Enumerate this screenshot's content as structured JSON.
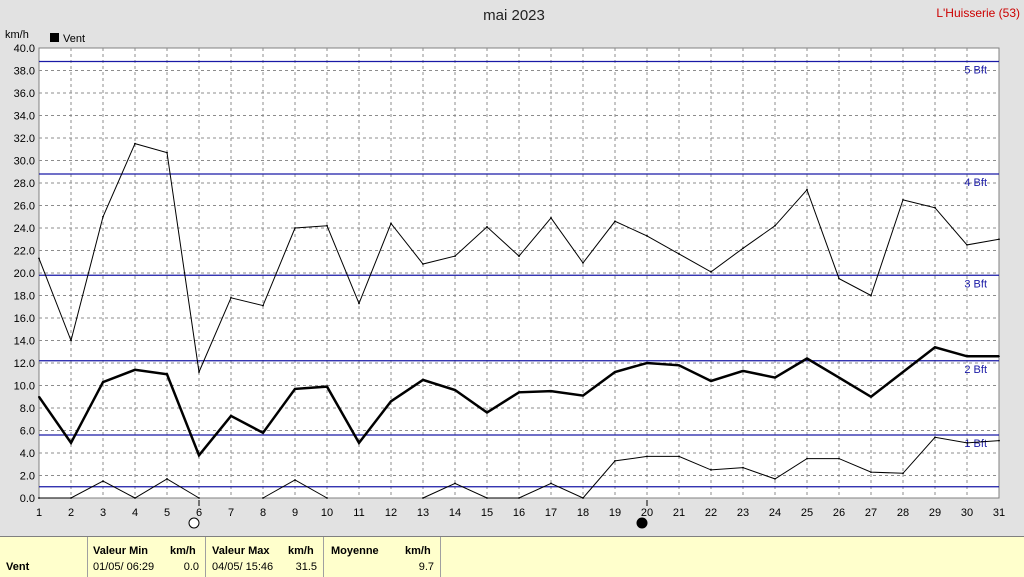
{
  "header": {
    "title": "mai 2023",
    "station": "L'Huisserie (53)",
    "unit": "km/h",
    "legend_label": "Vent"
  },
  "colors": {
    "plot_bg": "#ffffff",
    "grid": "#8c8c8c",
    "bft_line": "#1a1aa6",
    "series": "#000000"
  },
  "chart_data": {
    "type": "line",
    "title": "mai 2023",
    "ylabel": "km/h",
    "xlim": [
      1,
      31
    ],
    "ylim": [
      0,
      40
    ],
    "x_ticks": [
      1,
      2,
      3,
      4,
      5,
      6,
      7,
      8,
      9,
      10,
      11,
      12,
      13,
      14,
      15,
      16,
      17,
      18,
      19,
      20,
      21,
      22,
      23,
      24,
      25,
      26,
      27,
      28,
      29,
      30,
      31
    ],
    "y_ticks": [
      "0.0",
      "2.0",
      "4.0",
      "6.0",
      "8.0",
      "10.0",
      "12.0",
      "14.0",
      "16.0",
      "18.0",
      "20.0",
      "22.0",
      "24.0",
      "26.0",
      "28.0",
      "30.0",
      "32.0",
      "34.0",
      "36.0",
      "38.0",
      "40.0"
    ],
    "grid": true,
    "legend_position": "top-left",
    "series": [
      {
        "name": "Vent",
        "role": "mean",
        "x": [
          1,
          2,
          3,
          4,
          5,
          6,
          7,
          8,
          9,
          10,
          11,
          12,
          13,
          14,
          15,
          16,
          17,
          18,
          19,
          20,
          21,
          22,
          23,
          24,
          25,
          26,
          27,
          28,
          29,
          30,
          31
        ],
        "values": [
          9.0,
          4.9,
          10.3,
          11.4,
          11.0,
          3.8,
          7.3,
          5.8,
          9.7,
          9.9,
          4.9,
          8.6,
          10.5,
          9.6,
          7.6,
          9.4,
          9.5,
          9.1,
          11.2,
          12.0,
          11.8,
          10.4,
          11.3,
          10.7,
          12.4,
          10.7,
          9.0,
          11.2,
          13.4,
          12.6,
          12.6
        ]
      },
      {
        "role": "max",
        "x": [
          1,
          2,
          3,
          4,
          5,
          6,
          7,
          8,
          9,
          10,
          11,
          12,
          13,
          14,
          15,
          16,
          17,
          18,
          19,
          20,
          21,
          22,
          23,
          24,
          25,
          26,
          27,
          28,
          29,
          30,
          31
        ],
        "values": [
          21.3,
          14.0,
          25.0,
          31.5,
          30.7,
          11.2,
          17.8,
          17.1,
          24.0,
          24.2,
          17.3,
          24.4,
          20.8,
          21.5,
          24.1,
          21.5,
          24.9,
          20.9,
          24.6,
          23.3,
          21.7,
          20.1,
          22.2,
          24.2,
          27.4,
          19.5,
          18.0,
          26.5,
          25.8,
          22.5,
          23.0
        ]
      },
      {
        "role": "min",
        "x": [
          1,
          2,
          3,
          4,
          5,
          6,
          7,
          8,
          9,
          10,
          11,
          12,
          13,
          14,
          15,
          16,
          17,
          18,
          19,
          20,
          21,
          22,
          23,
          24,
          25,
          26,
          27,
          28,
          29,
          30,
          31
        ],
        "values": [
          0.0,
          0.0,
          1.5,
          0.0,
          1.7,
          0.0,
          null,
          0.0,
          1.6,
          0.0,
          null,
          null,
          0.0,
          1.3,
          0.0,
          0.0,
          1.3,
          0.0,
          3.3,
          3.7,
          3.7,
          2.5,
          2.7,
          1.7,
          3.5,
          3.5,
          2.3,
          2.2,
          5.4,
          4.9,
          5.1
        ]
      }
    ],
    "beaufort_lines": [
      {
        "value": 1.0,
        "label": "",
        "label_pos": ""
      },
      {
        "value": 5.6,
        "label": "1 Bft",
        "label_pos": "below"
      },
      {
        "value": 12.2,
        "label": "2 Bft",
        "label_pos": "below"
      },
      {
        "value": 19.8,
        "label": "3 Bft",
        "label_pos": "below"
      },
      {
        "value": 28.8,
        "label": "4 Bft",
        "label_pos": "below"
      },
      {
        "value": 38.8,
        "label": "5 Bft",
        "label_pos": "below"
      }
    ],
    "moon_phases": [
      {
        "day": 6,
        "phase": "full"
      },
      {
        "day": 20,
        "phase": "new"
      }
    ]
  },
  "stats": {
    "row_label": "Vent",
    "min": {
      "header": "Valeur Min",
      "unit": "km/h",
      "datetime": "01/05/  06:29",
      "value": "0.0"
    },
    "max": {
      "header": "Valeur Max",
      "unit": "km/h",
      "datetime": "04/05/  15:46",
      "value": "31.5"
    },
    "mean": {
      "header": "Moyenne",
      "unit": "km/h",
      "value": "9.7"
    }
  }
}
